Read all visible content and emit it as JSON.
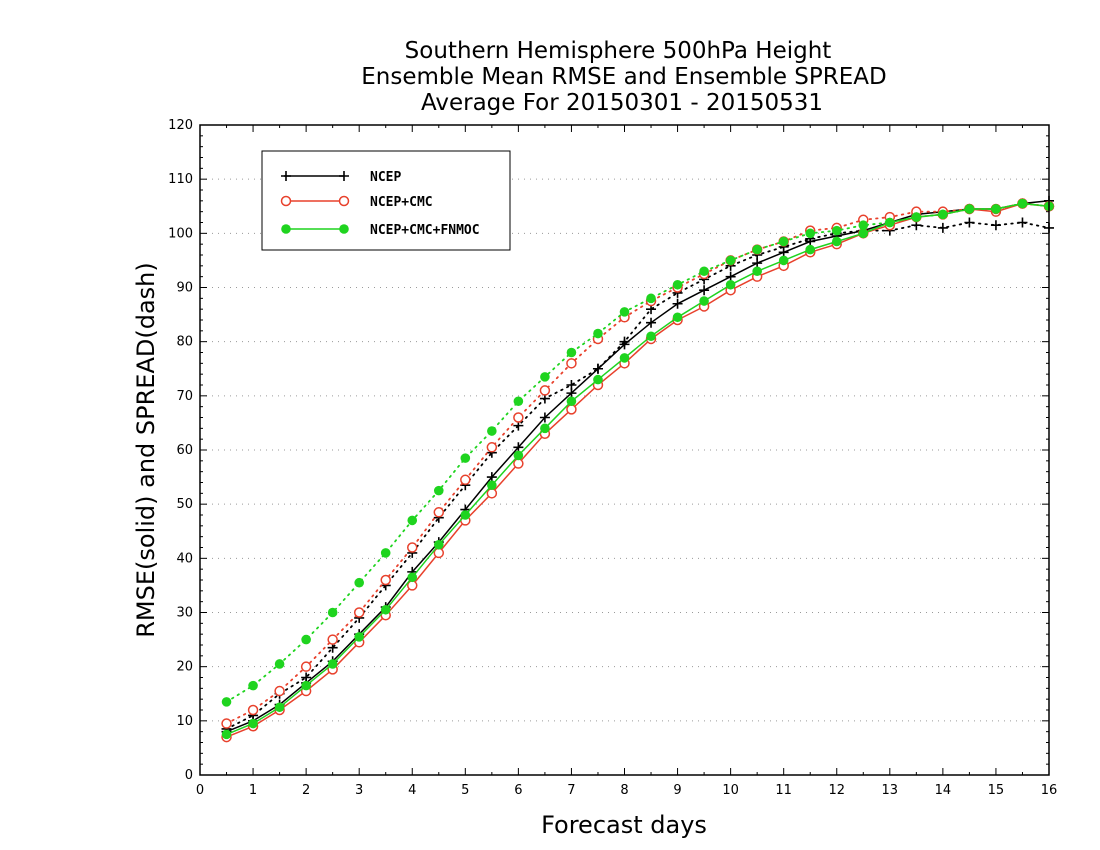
{
  "chart_data": {
    "type": "line",
    "title_lines": [
      "Southern Hemisphere 500hPa Height",
      "Ensemble Mean RMSE and Ensemble SPREAD",
      "Average For 20150301 - 20150531"
    ],
    "xlabel": "Forecast days",
    "ylabel": "RMSE(solid) and SPREAD(dash)",
    "xlim": [
      0,
      16
    ],
    "ylim": [
      0,
      120
    ],
    "x_ticks": [
      "0",
      "1",
      "2",
      "3",
      "4",
      "5",
      "6",
      "7",
      "8",
      "9",
      "10",
      "11",
      "12",
      "13",
      "14",
      "15",
      "16"
    ],
    "y_ticks": [
      "0",
      "10",
      "20",
      "30",
      "40",
      "50",
      "60",
      "70",
      "80",
      "90",
      "100",
      "110",
      "120"
    ],
    "grid": "horizontal dotted",
    "legend_position": "top-left",
    "x": [
      0.5,
      1,
      1.5,
      2,
      2.5,
      3,
      3.5,
      4,
      4.5,
      5,
      5.5,
      6,
      6.5,
      7,
      7.5,
      8,
      8.5,
      9,
      9.5,
      10,
      10.5,
      11,
      11.5,
      12,
      12.5,
      13,
      13.5,
      14,
      14.5,
      15,
      15.5,
      16
    ],
    "series": [
      {
        "name": "NCEP",
        "color": "#000000",
        "marker": "plus",
        "rmse": [
          8,
          10,
          13,
          17,
          21,
          26,
          31,
          37.5,
          43,
          49,
          55,
          60.5,
          66,
          70.5,
          75,
          79.5,
          83.5,
          87,
          89.5,
          92,
          94.5,
          96.5,
          98.5,
          99.5,
          100.5,
          102,
          103.5,
          104,
          104.5,
          104.5,
          105.5,
          106
        ],
        "spread": [
          8.5,
          11,
          15,
          18,
          23.5,
          29,
          35,
          41,
          47.5,
          53.5,
          59.5,
          64.5,
          69.5,
          72,
          75,
          80,
          86,
          89,
          91.5,
          94,
          96,
          97.5,
          99,
          100,
          100.5,
          100.5,
          101.5,
          101,
          102,
          101.5,
          102,
          101
        ]
      },
      {
        "name": "NCEP+CMC",
        "color": "#e8412c",
        "marker": "open-circle",
        "rmse": [
          7,
          9,
          12,
          15.5,
          19.5,
          24.5,
          29.5,
          35,
          41,
          47,
          52,
          57.5,
          63,
          67.5,
          72,
          76,
          80.5,
          84,
          86.5,
          89.5,
          92,
          94,
          96.5,
          98,
          100,
          101.5,
          103,
          103.5,
          104.5,
          104,
          105.5,
          105
        ],
        "spread": [
          9.5,
          12,
          15.5,
          20,
          25,
          30,
          36,
          42,
          48.5,
          54.5,
          60.5,
          66,
          71,
          76,
          80.5,
          84.5,
          87.5,
          90,
          92.5,
          95,
          97,
          98.5,
          100.5,
          101,
          102.5,
          103,
          104,
          104,
          104.5,
          104.5,
          105.5,
          105
        ]
      },
      {
        "name": "NCEP+CMC+FNMOC",
        "color": "#1fd41f",
        "marker": "filled-circle",
        "rmse": [
          7.5,
          9.5,
          12.5,
          16.5,
          20.5,
          25.5,
          30.5,
          36.5,
          42.5,
          48,
          53.5,
          59,
          64,
          69,
          73,
          77,
          81,
          84.5,
          87.5,
          90.5,
          93,
          95,
          97,
          98.5,
          100,
          102,
          103,
          103.5,
          104.5,
          104.5,
          105.5,
          105
        ],
        "spread": [
          13.5,
          16.5,
          20.5,
          25,
          30,
          35.5,
          41,
          47,
          52.5,
          58.5,
          63.5,
          69,
          73.5,
          78,
          81.5,
          85.5,
          88,
          90.5,
          93,
          95,
          97,
          98.5,
          100,
          100.5,
          101.5,
          102,
          103,
          103.5,
          104.5,
          104.5,
          105.5,
          105
        ]
      }
    ]
  }
}
